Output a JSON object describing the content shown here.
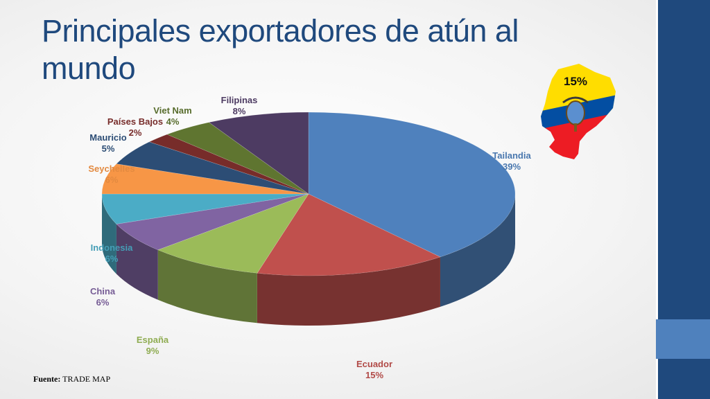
{
  "slide": {
    "title": "Principales exportadores de atún al mundo",
    "footer_label": "Fuente:",
    "footer_value": "TRADE MAP",
    "map_badge": "15%"
  },
  "colors": {
    "title": "#1f497d",
    "sidebar": "#1f497d",
    "sidebar_accent": "#4f81bd"
  },
  "chart_data": {
    "type": "pie",
    "style": "3d-exploded-none",
    "categories": [
      "Tailandia",
      "Ecuador",
      "España",
      "China",
      "Indonesia",
      "Seychelles",
      "Mauricio",
      "Países Bajos",
      "Viet Nam",
      "Filipinas"
    ],
    "values": [
      39,
      15,
      9,
      6,
      6,
      6,
      5,
      2,
      4,
      8
    ],
    "labels": [
      "39%",
      "15%",
      "9%",
      "6%",
      "6%",
      "6%",
      "5%",
      "2%",
      "4%",
      "8%"
    ],
    "colors": [
      "#4f81bd",
      "#c0504d",
      "#9bbb59",
      "#8064a2",
      "#4bacc6",
      "#f79646",
      "#2c4d75",
      "#772c2a",
      "#5f7530",
      "#4d3b62"
    ]
  }
}
